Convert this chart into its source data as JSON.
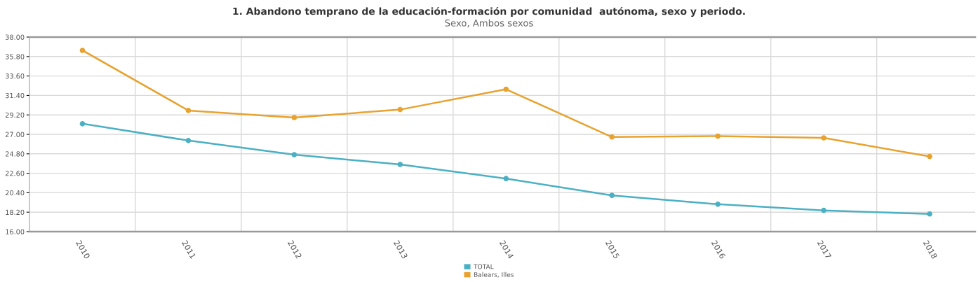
{
  "chart_data": {
    "type": "line",
    "title": "1. Abandono temprano de la educación-formación por comunidad  autónoma, sexo y periodo.",
    "subtitle": "Sexo, Ambos sexos",
    "categories": [
      "2010",
      "2011",
      "2012",
      "2013",
      "2014",
      "2015",
      "2016",
      "2017",
      "2018"
    ],
    "series": [
      {
        "name": "TOTAL",
        "color": "#4bb0c3",
        "values": [
          28.2,
          26.3,
          24.7,
          23.6,
          22.0,
          20.1,
          19.1,
          18.4,
          18.0
        ]
      },
      {
        "name": "Balears, Illes",
        "color": "#e8a22f",
        "values": [
          36.5,
          29.7,
          28.9,
          29.8,
          32.1,
          26.7,
          26.8,
          26.6,
          24.5
        ]
      }
    ],
    "ylim": [
      16,
      38
    ],
    "yticks": [
      {
        "value": 16,
        "label": "16.00"
      },
      {
        "value": 18.2,
        "label": "18.20"
      },
      {
        "value": 20.4,
        "label": "20.40"
      },
      {
        "value": 22.6,
        "label": "22.60"
      },
      {
        "value": 24.8,
        "label": "24.80"
      },
      {
        "value": 27,
        "label": "27.00"
      },
      {
        "value": 29.2,
        "label": "29.20"
      },
      {
        "value": 31.4,
        "label": "31.40"
      },
      {
        "value": 33.6,
        "label": "33.60"
      },
      {
        "value": 35.8,
        "label": "35.80"
      },
      {
        "value": 38,
        "label": "38.00"
      }
    ],
    "grid": true,
    "legend": "bottom",
    "marker": "circle",
    "line_style": "solid"
  }
}
